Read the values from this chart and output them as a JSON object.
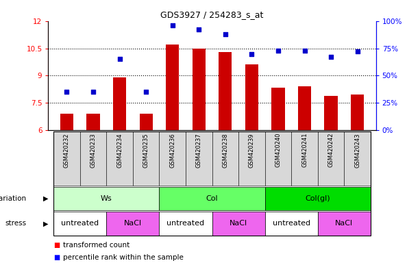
{
  "title": "GDS3927 / 254283_s_at",
  "samples": [
    "GSM420232",
    "GSM420233",
    "GSM420234",
    "GSM420235",
    "GSM420236",
    "GSM420237",
    "GSM420238",
    "GSM420239",
    "GSM420240",
    "GSM420241",
    "GSM420242",
    "GSM420243"
  ],
  "bar_values": [
    6.9,
    6.9,
    8.9,
    6.9,
    10.7,
    10.5,
    10.3,
    9.6,
    8.35,
    8.4,
    7.9,
    7.95
  ],
  "dot_values": [
    35,
    35,
    65,
    35,
    96,
    92,
    88,
    70,
    73,
    73,
    67,
    72
  ],
  "ylim_left": [
    6,
    12
  ],
  "ylim_right": [
    0,
    100
  ],
  "yticks_left": [
    6,
    7.5,
    9,
    10.5,
    12
  ],
  "ytick_labels_left": [
    "6",
    "7.5",
    "9",
    "10.5",
    "12"
  ],
  "yticks_right": [
    0,
    25,
    50,
    75,
    100
  ],
  "ytick_labels_right": [
    "0%",
    "25%",
    "50%",
    "75%",
    "100%"
  ],
  "bar_color": "#cc0000",
  "dot_color": "#0000cc",
  "dotted_yticks": [
    7.5,
    9.0,
    10.5
  ],
  "genotype_groups": [
    {
      "label": "Ws",
      "start": 0,
      "end": 3,
      "color": "#ccffcc"
    },
    {
      "label": "Col",
      "start": 4,
      "end": 7,
      "color": "#66ff66"
    },
    {
      "label": "Col(gl)",
      "start": 8,
      "end": 11,
      "color": "#00dd00"
    }
  ],
  "stress_groups": [
    {
      "label": "untreated",
      "start": 0,
      "end": 1,
      "color": "#ffffff"
    },
    {
      "label": "NaCl",
      "start": 2,
      "end": 3,
      "color": "#ee66ee"
    },
    {
      "label": "untreated",
      "start": 4,
      "end": 5,
      "color": "#ffffff"
    },
    {
      "label": "NaCl",
      "start": 6,
      "end": 7,
      "color": "#ee66ee"
    },
    {
      "label": "untreated",
      "start": 8,
      "end": 9,
      "color": "#ffffff"
    },
    {
      "label": "NaCl",
      "start": 10,
      "end": 11,
      "color": "#ee66ee"
    }
  ],
  "legend_red_label": "transformed count",
  "legend_blue_label": "percentile rank within the sample",
  "stress_label": "stress"
}
